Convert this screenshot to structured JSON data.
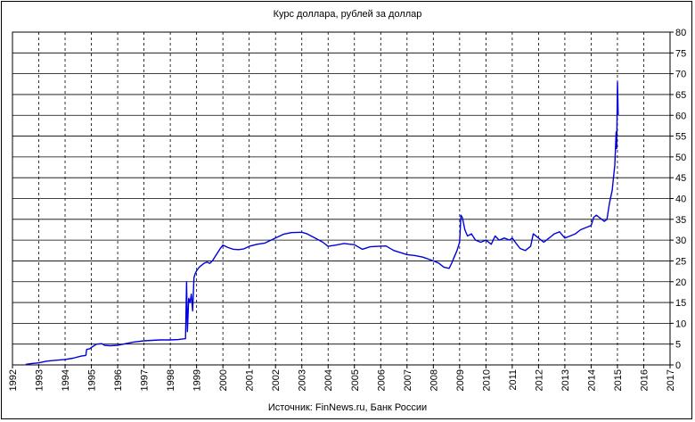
{
  "chart_data": {
    "type": "line",
    "title": "Курс доллара, рублей за доллар",
    "source": "Источник: FinNews.ru, Банк России",
    "xlabel": "",
    "ylabel": "",
    "xlim": [
      1992,
      2017
    ],
    "ylim": [
      0,
      80
    ],
    "x_ticks": [
      "1992",
      "1993",
      "1994",
      "1995",
      "1996",
      "1997",
      "1998",
      "1999",
      "2000",
      "2001",
      "2002",
      "2003",
      "2004",
      "2005",
      "2006",
      "2007",
      "2008",
      "2009",
      "2010",
      "2011",
      "2012",
      "2013",
      "2014",
      "2015",
      "2016",
      "2017"
    ],
    "y_ticks": [
      "0",
      "5",
      "10",
      "15",
      "20",
      "25",
      "30",
      "35",
      "40",
      "45",
      "50",
      "55",
      "60",
      "65",
      "70",
      "75",
      "80"
    ],
    "y_axis_side": "right",
    "grid": {
      "horizontal": "solid",
      "vertical": "dashed"
    },
    "legend": "none",
    "colors": {
      "series": "#0000dd",
      "grid": "#000000",
      "background": "#ffffff"
    },
    "series": [
      {
        "x": [
          1992.5,
          1992.7,
          1993.0,
          1993.3,
          1993.6,
          1994.0,
          1994.3,
          1994.6,
          1994.79,
          1994.82,
          1994.95,
          1995.0,
          1995.2,
          1995.4,
          1995.5,
          1995.7,
          1996.0,
          1996.3,
          1996.6,
          1997.0,
          1997.3,
          1997.6,
          1998.0,
          1998.3,
          1998.58,
          1998.62,
          1998.65,
          1998.7,
          1998.75,
          1998.8,
          1998.85,
          1998.9,
          1998.95,
          1999.0,
          1999.1,
          1999.2,
          1999.3,
          1999.4,
          1999.5,
          1999.6,
          1999.7,
          1999.8,
          1999.9,
          2000.0,
          2000.1,
          2000.2,
          2000.4,
          2000.6,
          2000.8,
          2001.0,
          2001.3,
          2001.6,
          2002.0,
          2002.3,
          2002.6,
          2003.0,
          2003.2,
          2003.5,
          2003.8,
          2004.0,
          2004.3,
          2004.6,
          2005.0,
          2005.3,
          2005.6,
          2005.9,
          2006.2,
          2006.5,
          2006.8,
          2007.0,
          2007.3,
          2007.6,
          2008.0,
          2008.2,
          2008.4,
          2008.6,
          2008.7,
          2008.8,
          2008.9,
          2009.0,
          2009.05,
          2009.1,
          2009.15,
          2009.2,
          2009.3,
          2009.45,
          2009.6,
          2009.8,
          2010.0,
          2010.2,
          2010.35,
          2010.5,
          2010.7,
          2010.9,
          2011.0,
          2011.15,
          2011.3,
          2011.5,
          2011.7,
          2011.8,
          2012.0,
          2012.2,
          2012.4,
          2012.5,
          2012.6,
          2012.8,
          2013.0,
          2013.2,
          2013.4,
          2013.6,
          2013.8,
          2014.0,
          2014.1,
          2014.2,
          2014.3,
          2014.4,
          2014.5,
          2014.6,
          2014.7,
          2014.8,
          2014.85,
          2014.9,
          2014.95,
          2014.97,
          2015.0,
          2015.03
        ],
        "y": [
          0.1,
          0.3,
          0.5,
          0.9,
          1.1,
          1.3,
          1.6,
          2.1,
          2.3,
          3.7,
          3.9,
          4.2,
          5.0,
          5.1,
          4.7,
          4.6,
          4.7,
          5.1,
          5.5,
          5.8,
          5.9,
          6.0,
          6.0,
          6.1,
          6.3,
          20.0,
          8.0,
          16.0,
          15.0,
          17.0,
          13.0,
          21.0,
          22.0,
          22.6,
          23.5,
          24.0,
          24.5,
          24.7,
          24.4,
          25.0,
          26.0,
          27.0,
          28.0,
          28.8,
          28.5,
          28.2,
          27.8,
          27.7,
          27.9,
          28.5,
          29.0,
          29.3,
          30.5,
          31.4,
          31.8,
          31.9,
          31.5,
          30.5,
          29.5,
          28.5,
          28.8,
          29.2,
          28.9,
          27.8,
          28.4,
          28.5,
          28.6,
          27.5,
          26.9,
          26.5,
          26.3,
          25.9,
          25.0,
          24.5,
          23.5,
          23.2,
          24.5,
          26.0,
          27.5,
          29.5,
          36.0,
          35.5,
          34.0,
          32.5,
          31.0,
          31.5,
          30.0,
          29.5,
          30.0,
          29.0,
          31.0,
          30.0,
          30.5,
          30.0,
          30.5,
          29.2,
          28.0,
          27.5,
          28.5,
          31.5,
          30.5,
          29.5,
          30.5,
          31.0,
          31.5,
          32.0,
          30.5,
          31.0,
          31.5,
          32.5,
          33.0,
          33.5,
          35.5,
          36.0,
          35.5,
          35.0,
          34.5,
          35.0,
          39.0,
          42.0,
          45.0,
          48.0,
          56.0,
          52.0,
          68.0,
          60.0
        ]
      }
    ]
  }
}
